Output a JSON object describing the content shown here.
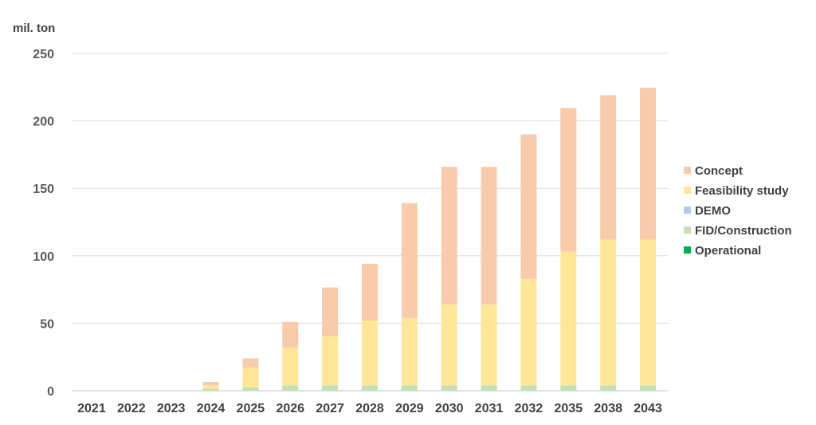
{
  "chart_data": {
    "type": "bar",
    "stacked": true,
    "title": "",
    "xlabel": "",
    "ylabel": "mil. ton",
    "ylim": [
      0,
      250
    ],
    "yticks": [
      0,
      50,
      100,
      150,
      200,
      250
    ],
    "grid": true,
    "legend_position": "right",
    "categories": [
      "2021",
      "2022",
      "2023",
      "2024",
      "2025",
      "2026",
      "2027",
      "2028",
      "2029",
      "2030",
      "2031",
      "2032",
      "2035",
      "2038",
      "2043"
    ],
    "series": [
      {
        "name": "Operational",
        "color": "#00b050",
        "values": [
          0,
          0,
          0,
          0,
          0,
          0,
          0,
          0,
          0,
          0,
          0,
          0,
          0,
          0,
          0
        ]
      },
      {
        "name": "FID/Construction",
        "color": "#c5e0b4",
        "values": [
          0,
          0,
          0,
          1.5,
          2.5,
          4,
          4,
          4,
          4,
          4,
          4,
          4,
          4,
          4,
          4
        ]
      },
      {
        "name": "DEMO",
        "color": "#b4c7e7",
        "values": [
          0,
          0,
          0,
          0,
          0,
          0,
          0,
          0,
          0,
          0,
          0,
          0,
          0,
          0,
          0
        ]
      },
      {
        "name": "Feasibility study",
        "color": "#ffe699",
        "values": [
          0,
          0,
          0,
          2.5,
          14.5,
          28,
          36.5,
          48,
          50,
          60,
          60,
          79,
          99,
          108,
          108
        ]
      },
      {
        "name": "Concept",
        "color": "#f8cbad",
        "values": [
          0,
          0,
          0,
          2.5,
          7,
          19,
          36,
          42,
          85,
          102,
          102,
          107,
          106.5,
          107,
          112.5
        ]
      }
    ],
    "legend_order": [
      "Concept",
      "Feasibility study",
      "DEMO",
      "FID/Construction",
      "Operational"
    ]
  }
}
